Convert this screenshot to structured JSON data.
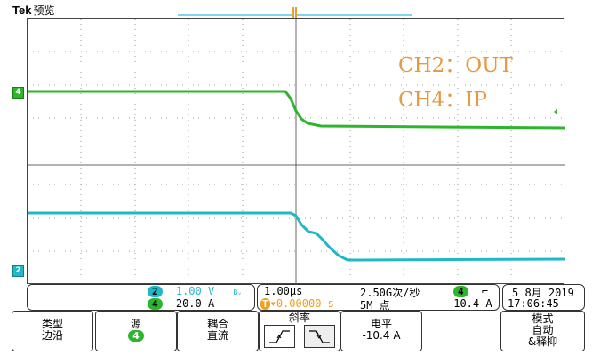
{
  "header": {
    "brand": "Tek",
    "mode": "预览"
  },
  "annotations": {
    "line1": "CH2：OUT",
    "line2": "CH4：IP"
  },
  "channel_markers": {
    "ch4": "4",
    "ch2": "2",
    "trigger": "T"
  },
  "channel_readout": {
    "ch2": {
      "badge": "2",
      "scale": "1.00 V",
      "suffix": "Bᵥ"
    },
    "ch4": {
      "badge": "4",
      "scale": "20.0 A"
    }
  },
  "timebase": {
    "scale": "1.00µs",
    "sample_rate": "2.50G次/秒",
    "position": "▾0.00000 s",
    "record_length": "5M 点",
    "trigger_badge": "4",
    "trigger_slope_glyph": "⌐",
    "trigger_level": "-10.4 A"
  },
  "datetime": {
    "date": "5 8月  2019",
    "time": "17:06:45"
  },
  "menu": {
    "type": {
      "line1": "类型",
      "line2": "边沿"
    },
    "source": {
      "line1": "源",
      "badge": "4"
    },
    "coupling": {
      "line1": "耦合",
      "line2": "直流"
    },
    "slope": {
      "line1": "斜率"
    },
    "level": {
      "line1": "电平",
      "line2": "-10.4 A"
    },
    "mode": {
      "line1": "模式",
      "line2": "自动",
      "line3": "&释抑"
    }
  },
  "colors": {
    "ch2": "#20b8c8",
    "ch4": "#2db52d",
    "trigger": "#f0a020",
    "annotation": "#e59a40"
  }
}
